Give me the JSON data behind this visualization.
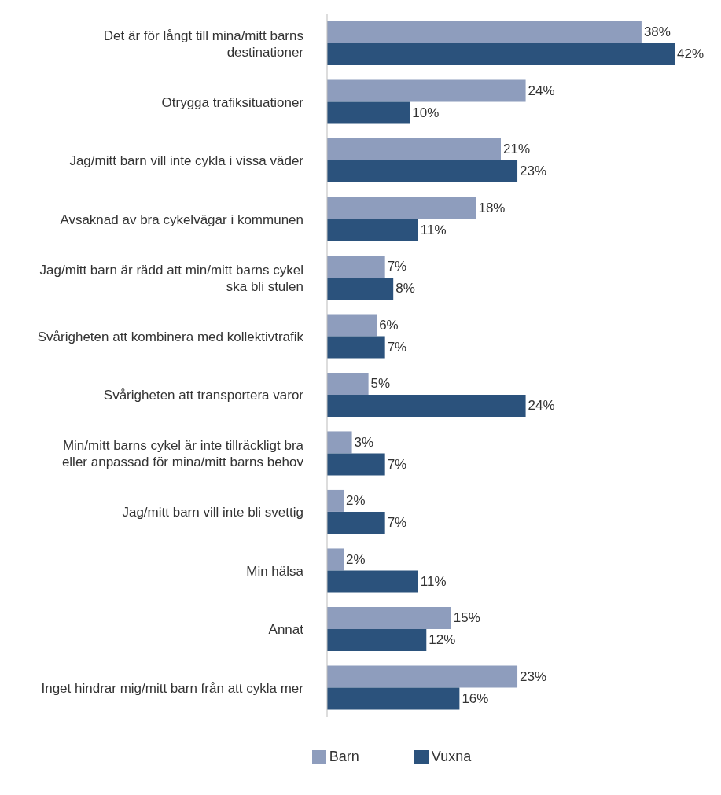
{
  "chart_data": {
    "type": "bar",
    "orientation": "horizontal",
    "categories": [
      "Det är för långt till mina/mitt barns destinationer",
      "Otrygga trafiksituationer",
      "Jag/mitt barn vill inte cykla i vissa väder",
      "Avsaknad av bra cykelvägar i kommunen",
      "Jag/mitt barn är rädd att min/mitt barns cykel ska bli stulen",
      "Svårigheten att kombinera med kollektivtrafik",
      "Svårigheten att transportera varor",
      "Min/mitt barns cykel är inte tillräckligt bra eller anpassad för mina/mitt barns behov",
      "Jag/mitt barn vill inte bli svettig",
      "Min hälsa",
      "Annat",
      "Inget hindrar mig/mitt barn från att cykla mer"
    ],
    "series": [
      {
        "name": "Barn",
        "color": "#8e9dbd",
        "values": [
          38,
          24,
          21,
          18,
          7,
          6,
          5,
          3,
          2,
          2,
          15,
          23
        ],
        "value_labels": [
          "38%",
          "24%",
          "21%",
          "18%",
          "7%",
          "6%",
          "5%",
          "3%",
          "2%",
          "2%",
          "15%",
          "23%"
        ]
      },
      {
        "name": "Vuxna",
        "color": "#2b527c",
        "values": [
          42,
          10,
          23,
          11,
          8,
          7,
          24,
          7,
          7,
          11,
          12,
          16
        ],
        "value_labels": [
          "42%",
          "10%",
          "23%",
          "11%",
          "8%",
          "7%",
          "24%",
          "7%",
          "7%",
          "11%",
          "12%",
          "16%"
        ]
      }
    ],
    "legend": "bottom",
    "grid": false
  }
}
